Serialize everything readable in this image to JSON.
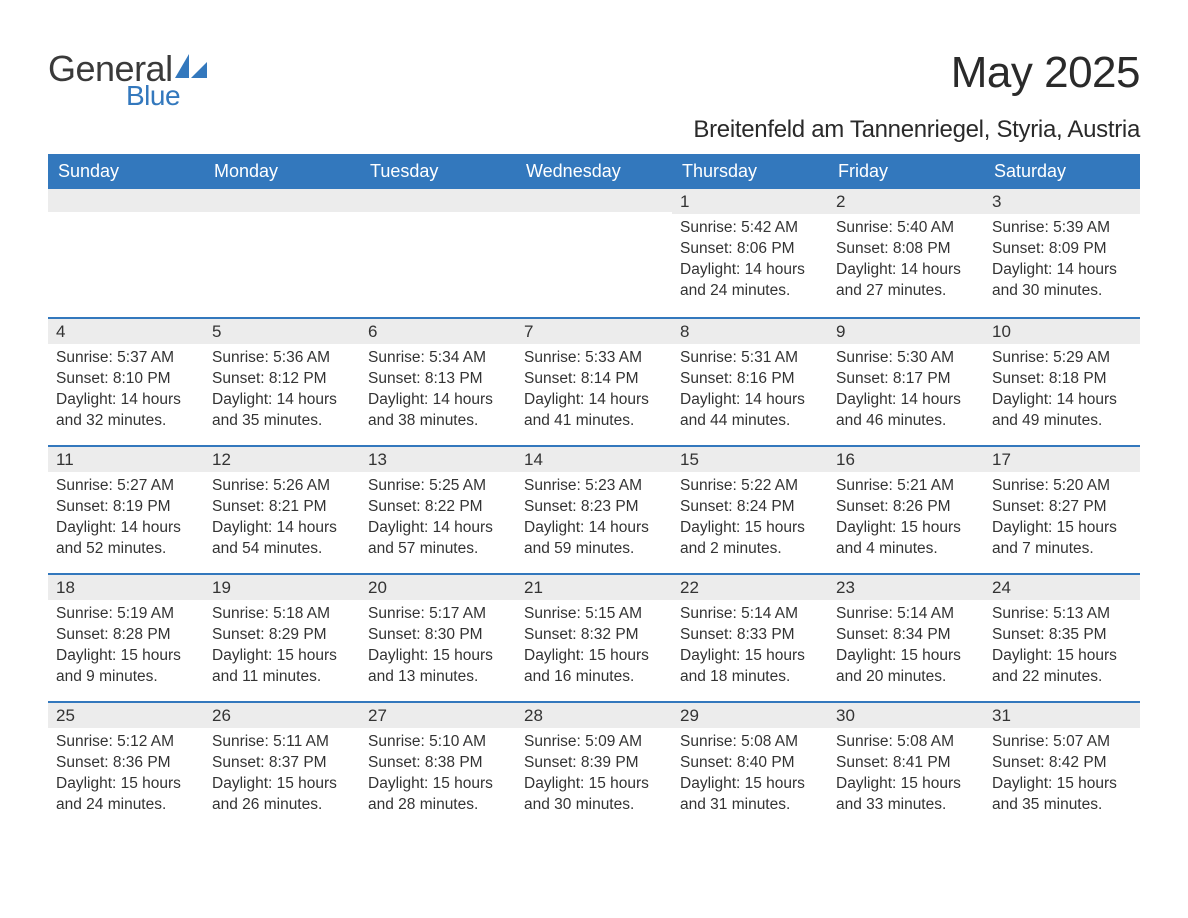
{
  "brand": {
    "general": "General",
    "blue": "Blue",
    "logo_color": "#3378bd",
    "text_color": "#3a3a3a"
  },
  "title": "May 2025",
  "location": "Breitenfeld am Tannenriegel, Styria, Austria",
  "theme": {
    "header_bg": "#3378bd",
    "header_text": "#ffffff",
    "daynum_bg": "#ececec",
    "rule_color": "#3378bd",
    "body_text": "#333333",
    "page_bg": "#ffffff"
  },
  "typography": {
    "title_fontsize": 44,
    "location_fontsize": 24,
    "weekday_fontsize": 18,
    "daynum_fontsize": 17,
    "detail_fontsize": 15.5
  },
  "weekdays": [
    "Sunday",
    "Monday",
    "Tuesday",
    "Wednesday",
    "Thursday",
    "Friday",
    "Saturday"
  ],
  "labels": {
    "sunrise": "Sunrise:",
    "sunset": "Sunset:",
    "daylight": "Daylight:"
  },
  "weeks": [
    [
      null,
      null,
      null,
      null,
      {
        "n": "1",
        "sunrise": "5:42 AM",
        "sunset": "8:06 PM",
        "daylight": "14 hours and 24 minutes."
      },
      {
        "n": "2",
        "sunrise": "5:40 AM",
        "sunset": "8:08 PM",
        "daylight": "14 hours and 27 minutes."
      },
      {
        "n": "3",
        "sunrise": "5:39 AM",
        "sunset": "8:09 PM",
        "daylight": "14 hours and 30 minutes."
      }
    ],
    [
      {
        "n": "4",
        "sunrise": "5:37 AM",
        "sunset": "8:10 PM",
        "daylight": "14 hours and 32 minutes."
      },
      {
        "n": "5",
        "sunrise": "5:36 AM",
        "sunset": "8:12 PM",
        "daylight": "14 hours and 35 minutes."
      },
      {
        "n": "6",
        "sunrise": "5:34 AM",
        "sunset": "8:13 PM",
        "daylight": "14 hours and 38 minutes."
      },
      {
        "n": "7",
        "sunrise": "5:33 AM",
        "sunset": "8:14 PM",
        "daylight": "14 hours and 41 minutes."
      },
      {
        "n": "8",
        "sunrise": "5:31 AM",
        "sunset": "8:16 PM",
        "daylight": "14 hours and 44 minutes."
      },
      {
        "n": "9",
        "sunrise": "5:30 AM",
        "sunset": "8:17 PM",
        "daylight": "14 hours and 46 minutes."
      },
      {
        "n": "10",
        "sunrise": "5:29 AM",
        "sunset": "8:18 PM",
        "daylight": "14 hours and 49 minutes."
      }
    ],
    [
      {
        "n": "11",
        "sunrise": "5:27 AM",
        "sunset": "8:19 PM",
        "daylight": "14 hours and 52 minutes."
      },
      {
        "n": "12",
        "sunrise": "5:26 AM",
        "sunset": "8:21 PM",
        "daylight": "14 hours and 54 minutes."
      },
      {
        "n": "13",
        "sunrise": "5:25 AM",
        "sunset": "8:22 PM",
        "daylight": "14 hours and 57 minutes."
      },
      {
        "n": "14",
        "sunrise": "5:23 AM",
        "sunset": "8:23 PM",
        "daylight": "14 hours and 59 minutes."
      },
      {
        "n": "15",
        "sunrise": "5:22 AM",
        "sunset": "8:24 PM",
        "daylight": "15 hours and 2 minutes."
      },
      {
        "n": "16",
        "sunrise": "5:21 AM",
        "sunset": "8:26 PM",
        "daylight": "15 hours and 4 minutes."
      },
      {
        "n": "17",
        "sunrise": "5:20 AM",
        "sunset": "8:27 PM",
        "daylight": "15 hours and 7 minutes."
      }
    ],
    [
      {
        "n": "18",
        "sunrise": "5:19 AM",
        "sunset": "8:28 PM",
        "daylight": "15 hours and 9 minutes."
      },
      {
        "n": "19",
        "sunrise": "5:18 AM",
        "sunset": "8:29 PM",
        "daylight": "15 hours and 11 minutes."
      },
      {
        "n": "20",
        "sunrise": "5:17 AM",
        "sunset": "8:30 PM",
        "daylight": "15 hours and 13 minutes."
      },
      {
        "n": "21",
        "sunrise": "5:15 AM",
        "sunset": "8:32 PM",
        "daylight": "15 hours and 16 minutes."
      },
      {
        "n": "22",
        "sunrise": "5:14 AM",
        "sunset": "8:33 PM",
        "daylight": "15 hours and 18 minutes."
      },
      {
        "n": "23",
        "sunrise": "5:14 AM",
        "sunset": "8:34 PM",
        "daylight": "15 hours and 20 minutes."
      },
      {
        "n": "24",
        "sunrise": "5:13 AM",
        "sunset": "8:35 PM",
        "daylight": "15 hours and 22 minutes."
      }
    ],
    [
      {
        "n": "25",
        "sunrise": "5:12 AM",
        "sunset": "8:36 PM",
        "daylight": "15 hours and 24 minutes."
      },
      {
        "n": "26",
        "sunrise": "5:11 AM",
        "sunset": "8:37 PM",
        "daylight": "15 hours and 26 minutes."
      },
      {
        "n": "27",
        "sunrise": "5:10 AM",
        "sunset": "8:38 PM",
        "daylight": "15 hours and 28 minutes."
      },
      {
        "n": "28",
        "sunrise": "5:09 AM",
        "sunset": "8:39 PM",
        "daylight": "15 hours and 30 minutes."
      },
      {
        "n": "29",
        "sunrise": "5:08 AM",
        "sunset": "8:40 PM",
        "daylight": "15 hours and 31 minutes."
      },
      {
        "n": "30",
        "sunrise": "5:08 AM",
        "sunset": "8:41 PM",
        "daylight": "15 hours and 33 minutes."
      },
      {
        "n": "31",
        "sunrise": "5:07 AM",
        "sunset": "8:42 PM",
        "daylight": "15 hours and 35 minutes."
      }
    ]
  ]
}
